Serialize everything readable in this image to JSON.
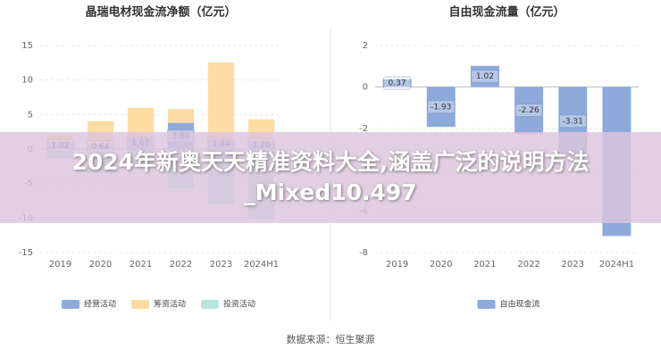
{
  "chart_data": [
    {
      "type": "bar",
      "stacked": true,
      "title": "晶瑞电材现金流净额（亿元）",
      "categories": [
        "2019",
        "2020",
        "2021",
        "2022",
        "2023",
        "2024H1"
      ],
      "series": [
        {
          "name": "经营活动",
          "color": "#8eaadb",
          "values": [
            1.02,
            0.64,
            1.67,
            3.8,
            1.44,
            1.2
          ],
          "value_labels": [
            "1.02",
            "0.64",
            "1.67",
            "3.80",
            "1.44",
            "1.20"
          ]
        },
        {
          "name": "筹资活动",
          "color": "#fcdca3",
          "values": [
            1,
            3.4,
            4.3,
            2,
            11.1,
            3.1
          ]
        },
        {
          "name": "投资活动",
          "color": "#b7e6de",
          "values": [
            -1.3,
            -3.5,
            -2.5,
            -5.7,
            -8,
            -10.2
          ]
        }
      ],
      "ylim": [
        -15,
        15
      ],
      "yticks": [
        -15,
        -10,
        -5,
        0,
        5,
        10,
        15
      ],
      "grid": true
    },
    {
      "type": "bar",
      "title": "自由现金流量（亿元）",
      "categories": [
        "2019",
        "2020",
        "2021",
        "2022",
        "2023",
        "2024H1"
      ],
      "series": [
        {
          "name": "自由现金流",
          "color": "#8eaadb",
          "values": [
            0.37,
            -1.93,
            1.02,
            -2.26,
            -3.31,
            -7.2
          ],
          "value_labels": [
            "0.37",
            "-1.93",
            "1.02",
            "-2.26",
            "-3.31",
            null
          ]
        }
      ],
      "ylim": [
        -8,
        2
      ],
      "yticks": [
        -8,
        -6,
        -4,
        -2,
        0,
        2
      ],
      "grid": true
    }
  ],
  "banner": {
    "text": "2024年新奥天天精准资料大全,涵盖广泛的说明方法_Mixed10.497"
  },
  "footer": {
    "source": "数据来源：恒生聚源"
  }
}
